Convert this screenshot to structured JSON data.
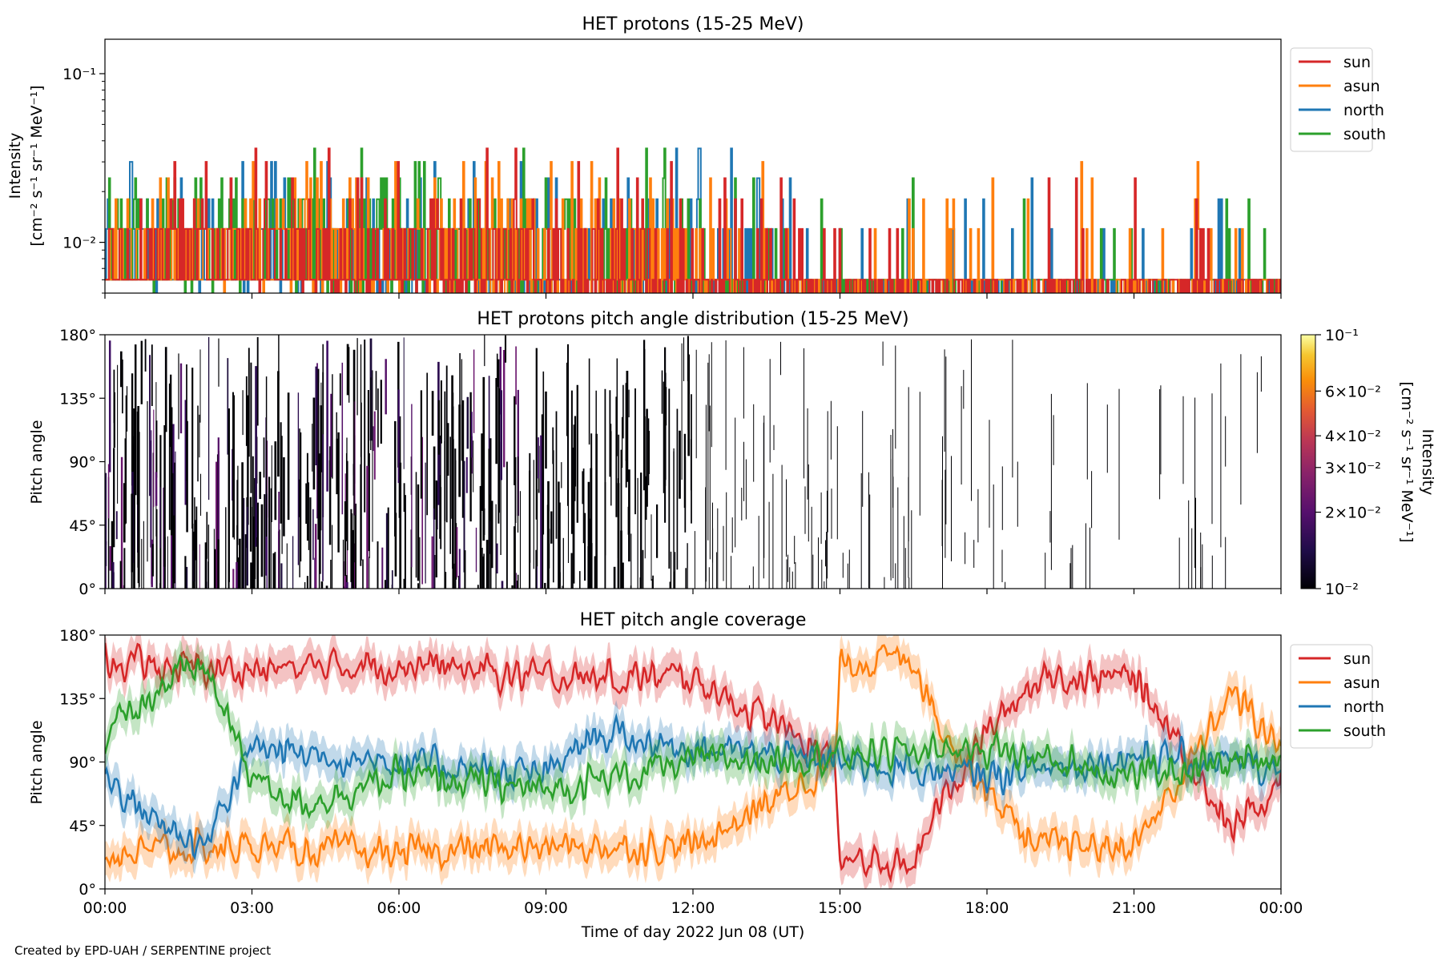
{
  "figure": {
    "credit": "Created by EPD-UAH / SERPENTINE project"
  },
  "chart_data": [
    {
      "type": "line",
      "title": "HET protons (15-25 MeV)",
      "ylabel_line1": "Intensity",
      "ylabel_line2": "[cm⁻² s⁻¹ sr⁻¹ MeV⁻¹]",
      "yscale": "log",
      "ylim": [
        0.005,
        0.16
      ],
      "yticks": [
        {
          "value": 0.1,
          "label": "10⁻¹"
        },
        {
          "value": 0.01,
          "label": "10⁻²"
        }
      ],
      "xlim_hours": [
        0,
        24
      ],
      "grid": false,
      "legend": {
        "placement": "outside-right-top",
        "entries": [
          {
            "name": "sun",
            "color": "#d62728"
          },
          {
            "name": "asun",
            "color": "#ff7f0e"
          },
          {
            "name": "north",
            "color": "#1f77b4"
          },
          {
            "name": "south",
            "color": "#2ca02c"
          }
        ]
      },
      "count_levels": [
        0.006,
        0.012,
        0.018,
        0.024,
        0.03,
        0.036,
        0.042
      ],
      "series": [
        {
          "name": "north",
          "color": "#1f77b4",
          "peak": 0.036
        },
        {
          "name": "south",
          "color": "#2ca02c",
          "peak": 0.042
        },
        {
          "name": "asun",
          "color": "#ff7f0e",
          "peak": 0.03
        },
        {
          "name": "sun",
          "color": "#d62728",
          "peak": 0.036
        }
      ],
      "activity_profile": [
        {
          "hour": 0,
          "level": 1.0
        },
        {
          "hour": 3,
          "level": 0.95
        },
        {
          "hour": 6,
          "level": 0.85
        },
        {
          "hour": 9,
          "level": 0.7
        },
        {
          "hour": 12,
          "level": 0.45
        },
        {
          "hour": 15,
          "level": 0.15
        },
        {
          "hour": 18,
          "level": 0.08
        },
        {
          "hour": 21,
          "level": 0.05
        },
        {
          "hour": 22,
          "level": 0.1
        },
        {
          "hour": 24,
          "level": 0.1
        }
      ]
    },
    {
      "type": "heatmap",
      "title": "HET protons pitch angle distribution (15-25 MeV)",
      "ylabel": "Pitch angle",
      "ylim": [
        0,
        180
      ],
      "yticks": [
        {
          "value": 0,
          "label": "0°"
        },
        {
          "value": 45,
          "label": "45°"
        },
        {
          "value": 90,
          "label": "90°"
        },
        {
          "value": 135,
          "label": "135°"
        },
        {
          "value": 180,
          "label": "180°"
        }
      ],
      "xlim_hours": [
        0,
        24
      ],
      "colorbar": {
        "label_line1": "Intensity",
        "label_line2": "[cm⁻² s⁻¹ sr⁻¹ MeV⁻¹]",
        "scale": "log",
        "range": [
          0.01,
          0.1
        ],
        "colormap": "inferno",
        "ticks": [
          {
            "value": 0.1,
            "label": "10⁻¹"
          },
          {
            "value": 0.06,
            "label": "6×10⁻²"
          },
          {
            "value": 0.04,
            "label": "4×10⁻²"
          },
          {
            "value": 0.03,
            "label": "3×10⁻²"
          },
          {
            "value": 0.02,
            "label": "2×10⁻²"
          },
          {
            "value": 0.01,
            "label": "10⁻²"
          }
        ]
      }
    },
    {
      "type": "line",
      "title": "HET pitch angle coverage",
      "ylabel": "Pitch angle",
      "xlabel": "Time of day 2022 Jun 08 (UT)",
      "ylim": [
        0,
        180
      ],
      "yticks": [
        {
          "value": 0,
          "label": "0°"
        },
        {
          "value": 45,
          "label": "45°"
        },
        {
          "value": 90,
          "label": "90°"
        },
        {
          "value": 135,
          "label": "135°"
        },
        {
          "value": 180,
          "label": "180°"
        }
      ],
      "xlim_hours": [
        0,
        24
      ],
      "xticks": [
        {
          "hour": 0,
          "label": "00:00"
        },
        {
          "hour": 3,
          "label": "03:00"
        },
        {
          "hour": 6,
          "label": "06:00"
        },
        {
          "hour": 9,
          "label": "09:00"
        },
        {
          "hour": 12,
          "label": "12:00"
        },
        {
          "hour": 15,
          "label": "15:00"
        },
        {
          "hour": 18,
          "label": "18:00"
        },
        {
          "hour": 21,
          "label": "21:00"
        },
        {
          "hour": 24,
          "label": "00:00"
        }
      ],
      "grid": false,
      "legend": {
        "placement": "outside-right-top",
        "entries": [
          {
            "name": "sun",
            "color": "#d62728"
          },
          {
            "name": "asun",
            "color": "#ff7f0e"
          },
          {
            "name": "north",
            "color": "#1f77b4"
          },
          {
            "name": "south",
            "color": "#2ca02c"
          }
        ]
      },
      "band_halfwidth_deg": 12,
      "series": [
        {
          "name": "sun",
          "color": "#d62728",
          "mean_profile": [
            {
              "hour": 0,
              "deg": 160
            },
            {
              "hour": 3,
              "deg": 155
            },
            {
              "hour": 6,
              "deg": 160
            },
            {
              "hour": 9,
              "deg": 150
            },
            {
              "hour": 12,
              "deg": 150
            },
            {
              "hour": 13.5,
              "deg": 120
            },
            {
              "hour": 14.9,
              "deg": 90
            },
            {
              "hour": 15,
              "deg": 20
            },
            {
              "hour": 16.5,
              "deg": 15
            },
            {
              "hour": 17,
              "deg": 60
            },
            {
              "hour": 18,
              "deg": 110
            },
            {
              "hour": 19,
              "deg": 150
            },
            {
              "hour": 21,
              "deg": 150
            },
            {
              "hour": 22,
              "deg": 100
            },
            {
              "hour": 23,
              "deg": 40
            },
            {
              "hour": 24,
              "deg": 80
            }
          ]
        },
        {
          "name": "asun",
          "color": "#ff7f0e",
          "mean_profile": [
            {
              "hour": 0,
              "deg": 25
            },
            {
              "hour": 3,
              "deg": 30
            },
            {
              "hour": 6,
              "deg": 25
            },
            {
              "hour": 9,
              "deg": 30
            },
            {
              "hour": 12,
              "deg": 30
            },
            {
              "hour": 13.5,
              "deg": 60
            },
            {
              "hour": 14.9,
              "deg": 90
            },
            {
              "hour": 15,
              "deg": 160
            },
            {
              "hour": 16.5,
              "deg": 165
            },
            {
              "hour": 17,
              "deg": 120
            },
            {
              "hour": 18,
              "deg": 70
            },
            {
              "hour": 19,
              "deg": 30
            },
            {
              "hour": 21,
              "deg": 30
            },
            {
              "hour": 22,
              "deg": 80
            },
            {
              "hour": 23,
              "deg": 140
            },
            {
              "hour": 24,
              "deg": 100
            }
          ]
        },
        {
          "name": "north",
          "color": "#1f77b4",
          "mean_profile": [
            {
              "hour": 0,
              "deg": 80
            },
            {
              "hour": 1,
              "deg": 50
            },
            {
              "hour": 2,
              "deg": 30
            },
            {
              "hour": 3,
              "deg": 100
            },
            {
              "hour": 6,
              "deg": 90
            },
            {
              "hour": 9,
              "deg": 80
            },
            {
              "hour": 10,
              "deg": 110
            },
            {
              "hour": 12,
              "deg": 100
            },
            {
              "hour": 15,
              "deg": 90
            },
            {
              "hour": 18,
              "deg": 80
            },
            {
              "hour": 21,
              "deg": 95
            },
            {
              "hour": 24,
              "deg": 85
            }
          ]
        },
        {
          "name": "south",
          "color": "#2ca02c",
          "mean_profile": [
            {
              "hour": 0,
              "deg": 110
            },
            {
              "hour": 1,
              "deg": 140
            },
            {
              "hour": 2,
              "deg": 160
            },
            {
              "hour": 3,
              "deg": 80
            },
            {
              "hour": 4,
              "deg": 60
            },
            {
              "hour": 6,
              "deg": 80
            },
            {
              "hour": 9,
              "deg": 70
            },
            {
              "hour": 12,
              "deg": 90
            },
            {
              "hour": 15,
              "deg": 95
            },
            {
              "hour": 18,
              "deg": 100
            },
            {
              "hour": 21,
              "deg": 80
            },
            {
              "hour": 24,
              "deg": 95
            }
          ]
        }
      ]
    }
  ]
}
